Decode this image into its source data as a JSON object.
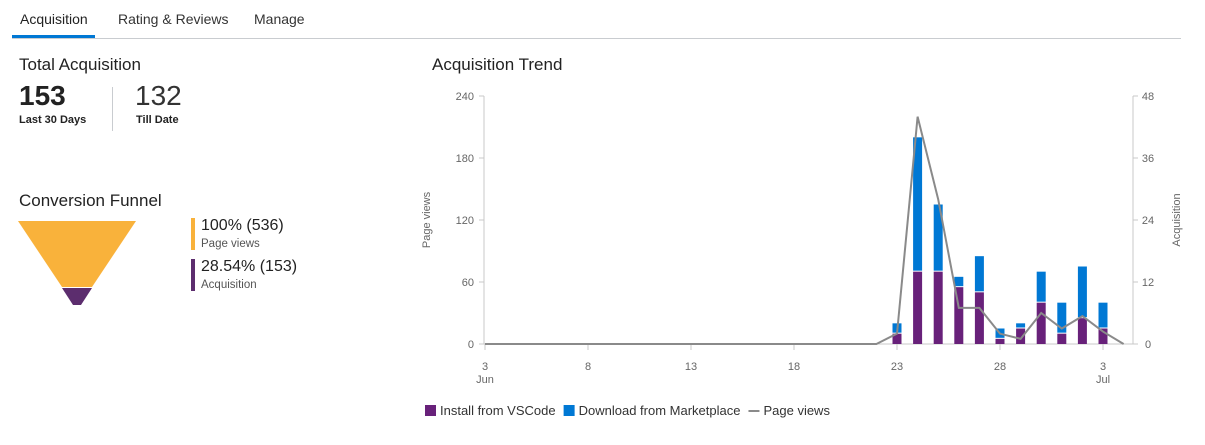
{
  "tabs": [
    {
      "label": "Acquisition",
      "active": true
    },
    {
      "label": "Rating & Reviews",
      "active": false
    },
    {
      "label": "Manage",
      "active": false
    }
  ],
  "total_acquisition": {
    "title": "Total Acquisition",
    "last30_value": "153",
    "last30_label": "Last 30 Days",
    "till_date_value": "132",
    "till_date_label": "Till Date"
  },
  "funnel": {
    "title": "Conversion Funnel",
    "stages": [
      {
        "value": "100% (536)",
        "label": "Page views",
        "color": "#f9b23b"
      },
      {
        "value": "28.54% (153)",
        "label": "Acquisition",
        "color": "#5c2d6e"
      }
    ]
  },
  "chart_data": {
    "type": "bar",
    "title": "Acquisition Trend",
    "left_axis_label": "Page views",
    "right_axis_label": "Acquisition",
    "left_ylim": [
      0,
      240
    ],
    "left_ticks": [
      "0",
      "60",
      "120",
      "180",
      "240"
    ],
    "right_ylim": [
      0,
      48
    ],
    "right_ticks": [
      "0",
      "12",
      "24",
      "36",
      "48"
    ],
    "x_tick_labels": [
      {
        "day": 3,
        "label": "3",
        "sublabel": "Jun"
      },
      {
        "day": 8,
        "label": "8",
        "sublabel": ""
      },
      {
        "day": 13,
        "label": "13",
        "sublabel": ""
      },
      {
        "day": 18,
        "label": "18",
        "sublabel": ""
      },
      {
        "day": 23,
        "label": "23",
        "sublabel": ""
      },
      {
        "day": 28,
        "label": "28",
        "sublabel": ""
      },
      {
        "day": 33,
        "label": "3",
        "sublabel": "Jul"
      }
    ],
    "bar_days": [
      23,
      24,
      25,
      26,
      27,
      28,
      29,
      30,
      31,
      32,
      33
    ],
    "series": [
      {
        "name": "Install from VSCode",
        "kind": "bar",
        "color": "#68217a",
        "values": [
          2,
          14,
          14,
          11,
          10,
          1,
          3,
          8,
          2,
          5,
          3
        ]
      },
      {
        "name": "Download from Marketplace",
        "kind": "bar",
        "color": "#0078d4",
        "values": [
          2,
          26,
          13,
          2,
          7,
          2,
          1,
          6,
          6,
          10,
          5
        ]
      },
      {
        "name": "Page views",
        "kind": "line",
        "color": "#8a8a8a",
        "x": [
          3,
          22,
          23,
          24,
          25,
          26,
          27,
          28,
          29,
          30,
          31,
          32,
          33,
          34
        ],
        "values": [
          0,
          0,
          10,
          220,
          140,
          35,
          35,
          10,
          5,
          30,
          15,
          27,
          12,
          0
        ]
      }
    ],
    "grid": false,
    "legend_position": "bottom-center"
  }
}
